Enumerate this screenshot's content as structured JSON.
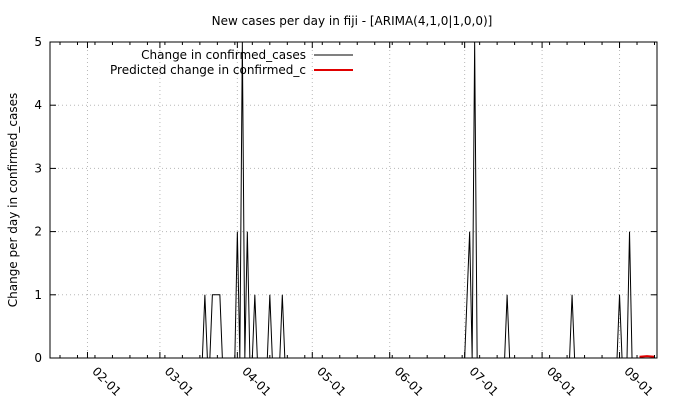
{
  "chart_data": {
    "type": "line",
    "title": "New cases per day in fiji -  [ARIMA(4,1,0|1,0,0)]",
    "xlabel": "",
    "ylabel": "Change per day in confirmed_cases",
    "x_axis": {
      "type": "date",
      "range": [
        "2020-01-17",
        "2020-09-16"
      ],
      "tick_labels": [
        "02-01",
        "03-01",
        "04-01",
        "05-01",
        "06-01",
        "07-01",
        "08-01",
        "09-01"
      ],
      "tick_dates": [
        "2020-02-01",
        "2020-03-01",
        "2020-04-01",
        "2020-05-01",
        "2020-06-01",
        "2020-07-01",
        "2020-08-01",
        "2020-09-01"
      ]
    },
    "ylim": [
      0,
      5
    ],
    "yticks": [
      0,
      1,
      2,
      3,
      4,
      5
    ],
    "grid": true,
    "legend_position": "top-left",
    "series": [
      {
        "name": "Change in confirmed_cases",
        "color": "#000000",
        "points": [
          [
            "2020-01-17",
            0
          ],
          [
            "2020-03-18",
            0
          ],
          [
            "2020-03-19",
            1
          ],
          [
            "2020-03-20",
            0
          ],
          [
            "2020-03-21",
            0
          ],
          [
            "2020-03-22",
            1
          ],
          [
            "2020-03-23",
            1
          ],
          [
            "2020-03-24",
            1
          ],
          [
            "2020-03-25",
            1
          ],
          [
            "2020-03-26",
            0
          ],
          [
            "2020-03-31",
            0
          ],
          [
            "2020-04-01",
            2
          ],
          [
            "2020-04-02",
            0
          ],
          [
            "2020-04-03",
            5
          ],
          [
            "2020-04-04",
            0
          ],
          [
            "2020-04-05",
            2
          ],
          [
            "2020-04-06",
            0
          ],
          [
            "2020-04-07",
            0
          ],
          [
            "2020-04-08",
            1
          ],
          [
            "2020-04-09",
            0
          ],
          [
            "2020-04-13",
            0
          ],
          [
            "2020-04-14",
            1
          ],
          [
            "2020-04-15",
            0
          ],
          [
            "2020-04-18",
            0
          ],
          [
            "2020-04-19",
            1
          ],
          [
            "2020-04-20",
            0
          ],
          [
            "2020-07-01",
            0
          ],
          [
            "2020-07-03",
            2
          ],
          [
            "2020-07-04",
            0
          ],
          [
            "2020-07-05",
            5
          ],
          [
            "2020-07-06",
            0
          ],
          [
            "2020-07-17",
            0
          ],
          [
            "2020-07-18",
            1
          ],
          [
            "2020-07-19",
            0
          ],
          [
            "2020-08-12",
            0
          ],
          [
            "2020-08-13",
            1
          ],
          [
            "2020-08-14",
            0
          ],
          [
            "2020-08-31",
            0
          ],
          [
            "2020-09-01",
            1
          ],
          [
            "2020-09-02",
            0
          ],
          [
            "2020-09-04",
            0
          ],
          [
            "2020-09-05",
            2
          ],
          [
            "2020-09-06",
            0
          ],
          [
            "2020-09-09",
            0
          ]
        ]
      },
      {
        "name": "Predicted change in confirmed_c",
        "color": "#e00000",
        "points": [
          [
            "2020-09-09",
            0.02
          ],
          [
            "2020-09-12",
            0.03
          ],
          [
            "2020-09-15",
            0.02
          ]
        ]
      }
    ]
  }
}
